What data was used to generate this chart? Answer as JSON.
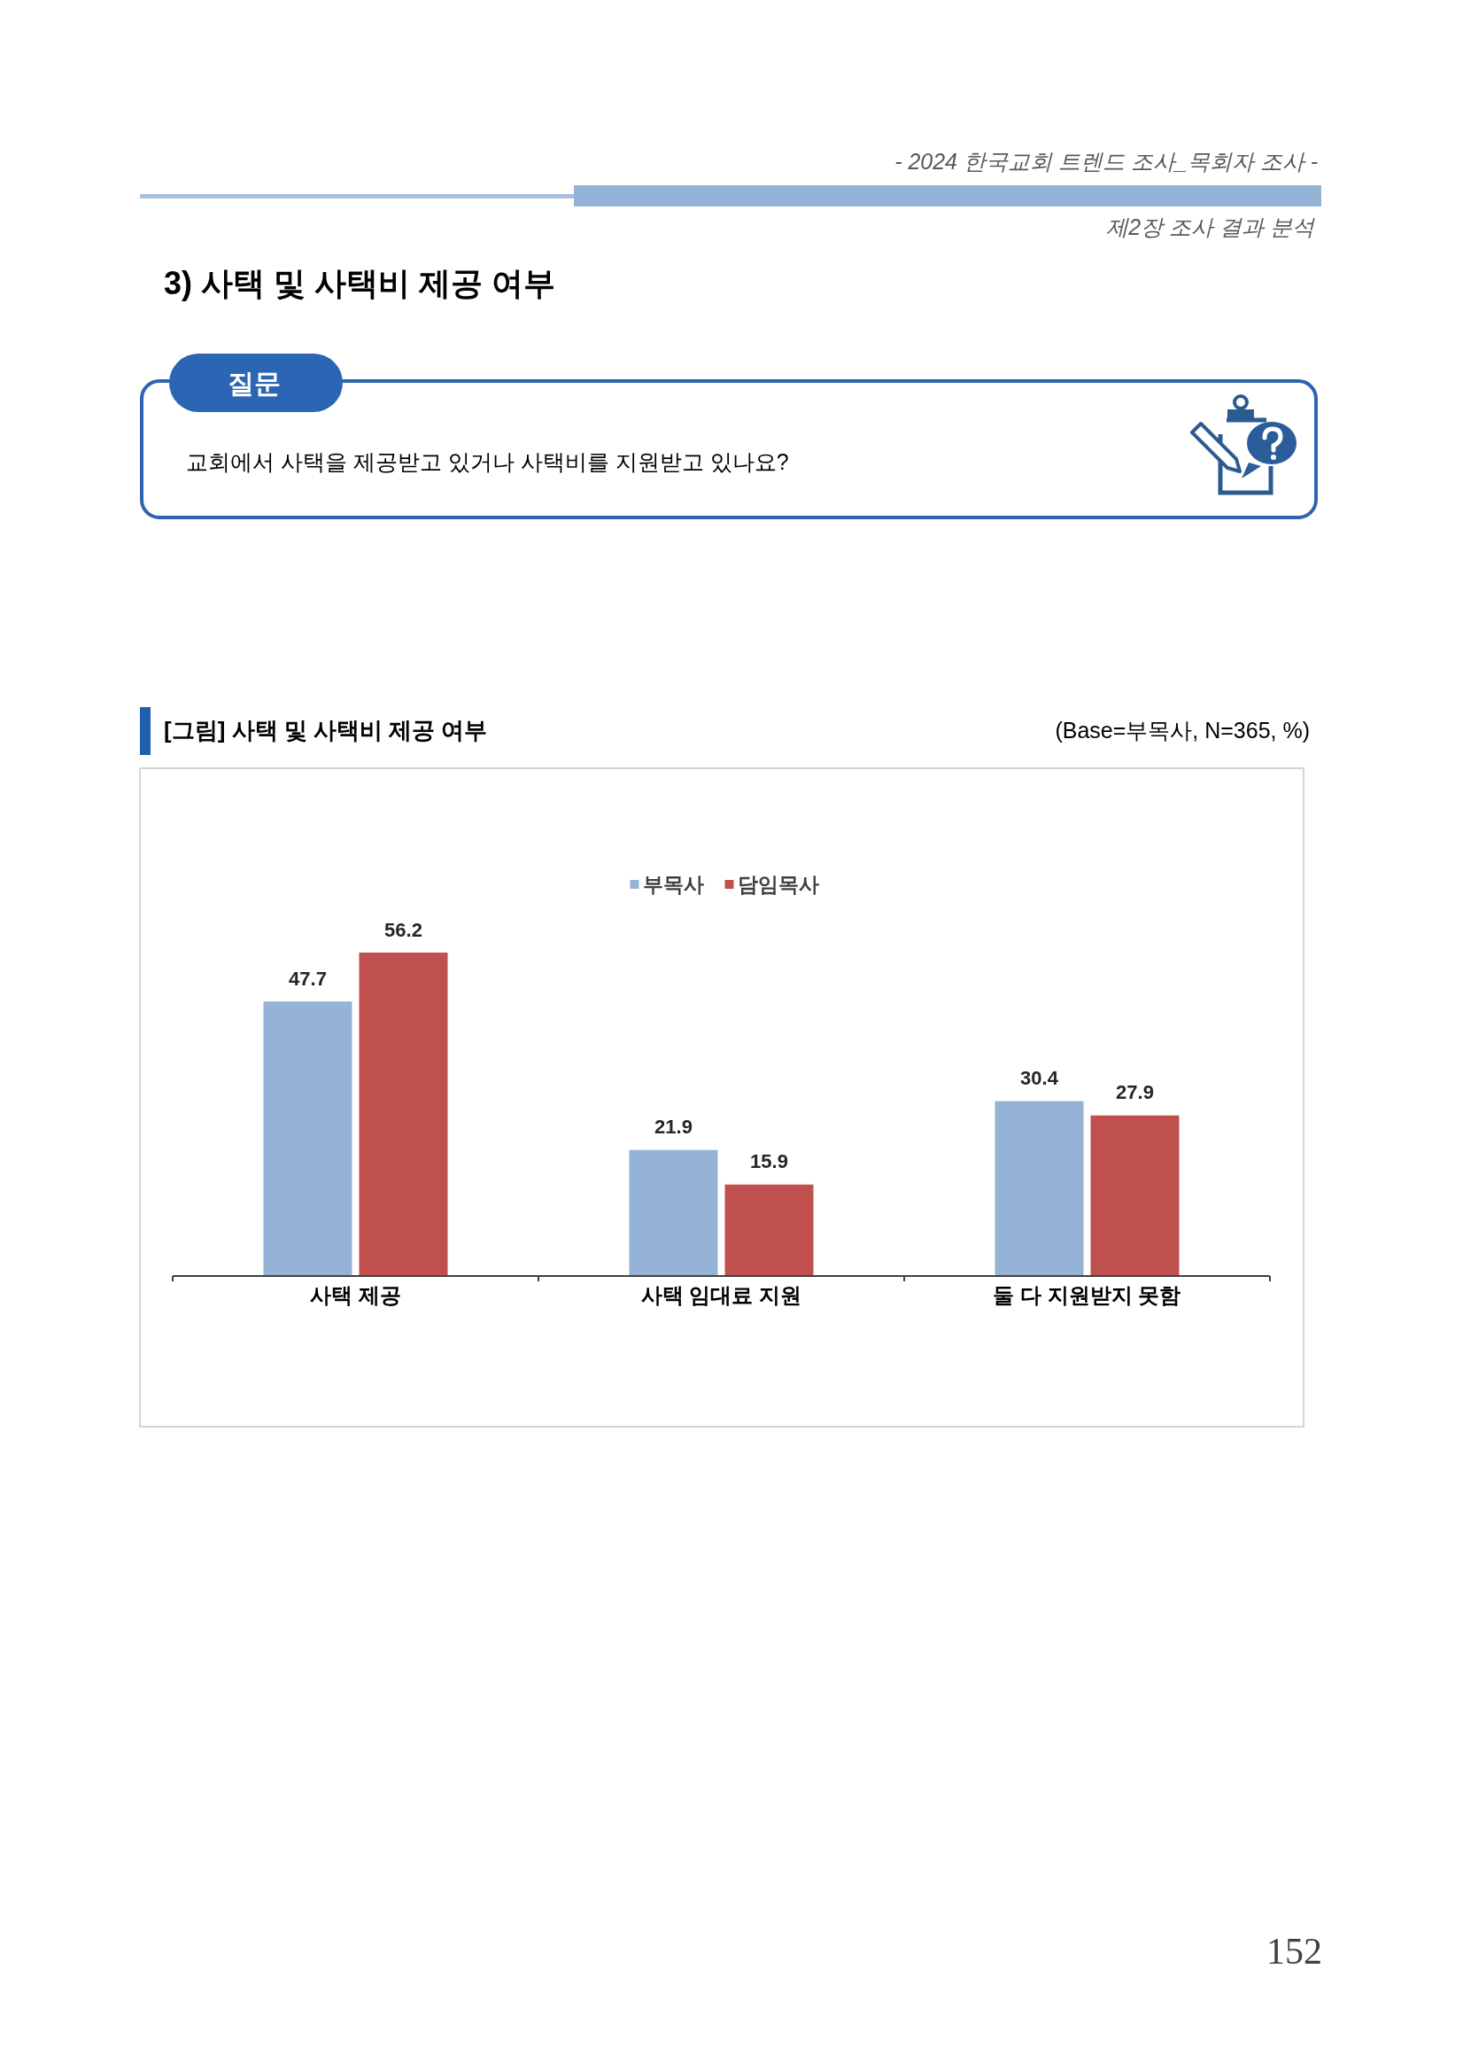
{
  "chart_data": {
    "type": "bar",
    "title": "[그림] 사택 및 사택비 제공 여부",
    "subtitle": "(Base=부목사, N=365, %)",
    "categories": [
      "사택 제공",
      "사택 임대료 지원",
      "둘 다 지원받지 못함"
    ],
    "series": [
      {
        "name": "부목사",
        "color": "#95b3d7",
        "values": [
          47.7,
          21.9,
          30.4
        ]
      },
      {
        "name": "담임목사",
        "color": "#c0504d",
        "values": [
          56.2,
          15.9,
          27.9
        ]
      }
    ],
    "data_labels": true,
    "legend": "top",
    "annotations": [
      "- 2024 한국교회 트렌드 조사_목회자 조사 -",
      "제2장 조사 결과 분석",
      "3) 사택 및 사택비 제공 여부",
      "질문",
      "교회에서 사택을 제공받고 있거나 사택비를 지원받고 있나요?",
      "152"
    ]
  }
}
